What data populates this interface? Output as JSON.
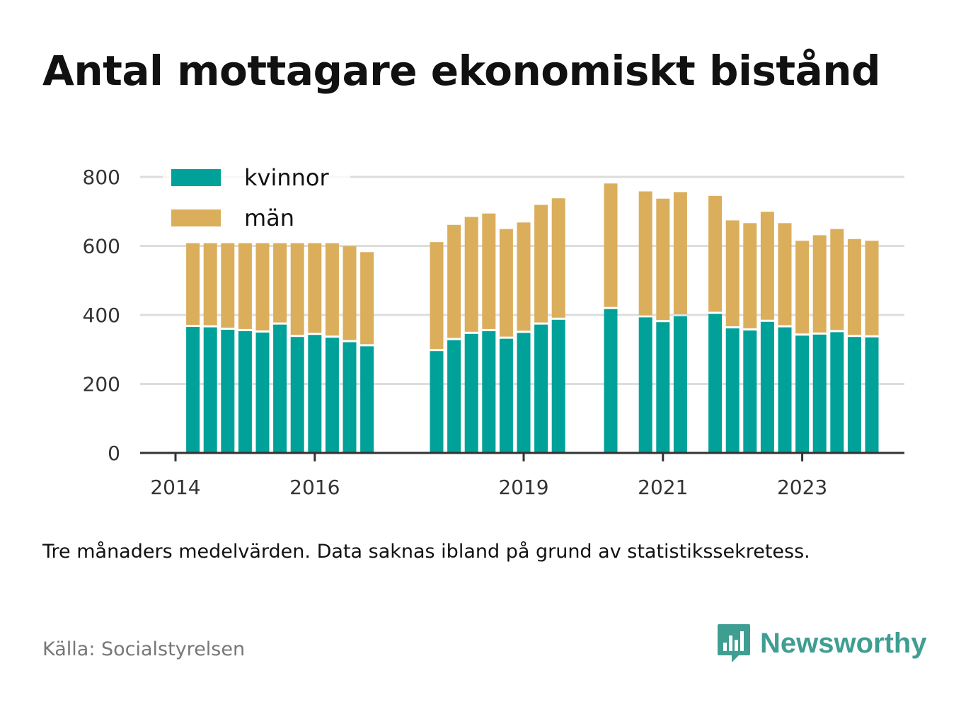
{
  "title": "Antal mottagare ekonomiskt bistånd",
  "note": "Tre månaders medelvärden. Data saknas ibland på grund av statistikssekretess.",
  "source": "Källa: Socialstyrelsen",
  "brand": {
    "name": "Newsworthy",
    "icon": "newsworthy-logo-icon",
    "color": "#3f9e92"
  },
  "colors": {
    "kvinnor": "#00a199",
    "man": "#dbae5c",
    "grid": "#dddddd",
    "axis": "#333333"
  },
  "chart_data": {
    "type": "bar",
    "stacked": true,
    "title": "Antal mottagare ekonomiskt bistånd",
    "xlabel": "",
    "ylabel": "",
    "ylim": [
      0,
      800
    ],
    "yticks": [
      0,
      200,
      400,
      600,
      800
    ],
    "xticks": [
      "2014",
      "2016",
      "2019",
      "2021",
      "2023"
    ],
    "legend": {
      "placement": "top-left",
      "entries": [
        "kvinnor",
        "män"
      ]
    },
    "grid": true,
    "x": [
      "2014-04",
      "2014-07",
      "2014-10",
      "2015-01",
      "2015-04",
      "2015-07",
      "2015-10",
      "2016-01",
      "2016-04",
      "2016-07",
      "2016-10",
      "2017-10",
      "2018-01",
      "2018-04",
      "2018-07",
      "2018-10",
      "2019-01",
      "2019-04",
      "2019-07",
      "2020-04",
      "2020-10",
      "2021-01",
      "2021-04",
      "2021-10",
      "2022-01",
      "2022-04",
      "2022-07",
      "2022-10",
      "2023-01",
      "2023-04",
      "2023-07",
      "2023-10",
      "2024-01"
    ],
    "series": [
      {
        "name": "kvinnor",
        "values": [
          365,
          364,
          357,
          353,
          349,
          372,
          336,
          342,
          334,
          321,
          309,
          295,
          327,
          345,
          353,
          331,
          348,
          372,
          386,
          417,
          393,
          379,
          396,
          403,
          361,
          355,
          380,
          364,
          340,
          343,
          350,
          336,
          335
        ]
      },
      {
        "name": "män",
        "values": [
          243,
          244,
          251,
          255,
          259,
          236,
          272,
          266,
          274,
          278,
          273,
          316,
          334,
          339,
          341,
          318,
          320,
          347,
          352,
          364,
          365,
          358,
          360,
          342,
          313,
          311,
          319,
          302,
          275,
          288,
          299,
          284,
          280
        ]
      }
    ]
  }
}
